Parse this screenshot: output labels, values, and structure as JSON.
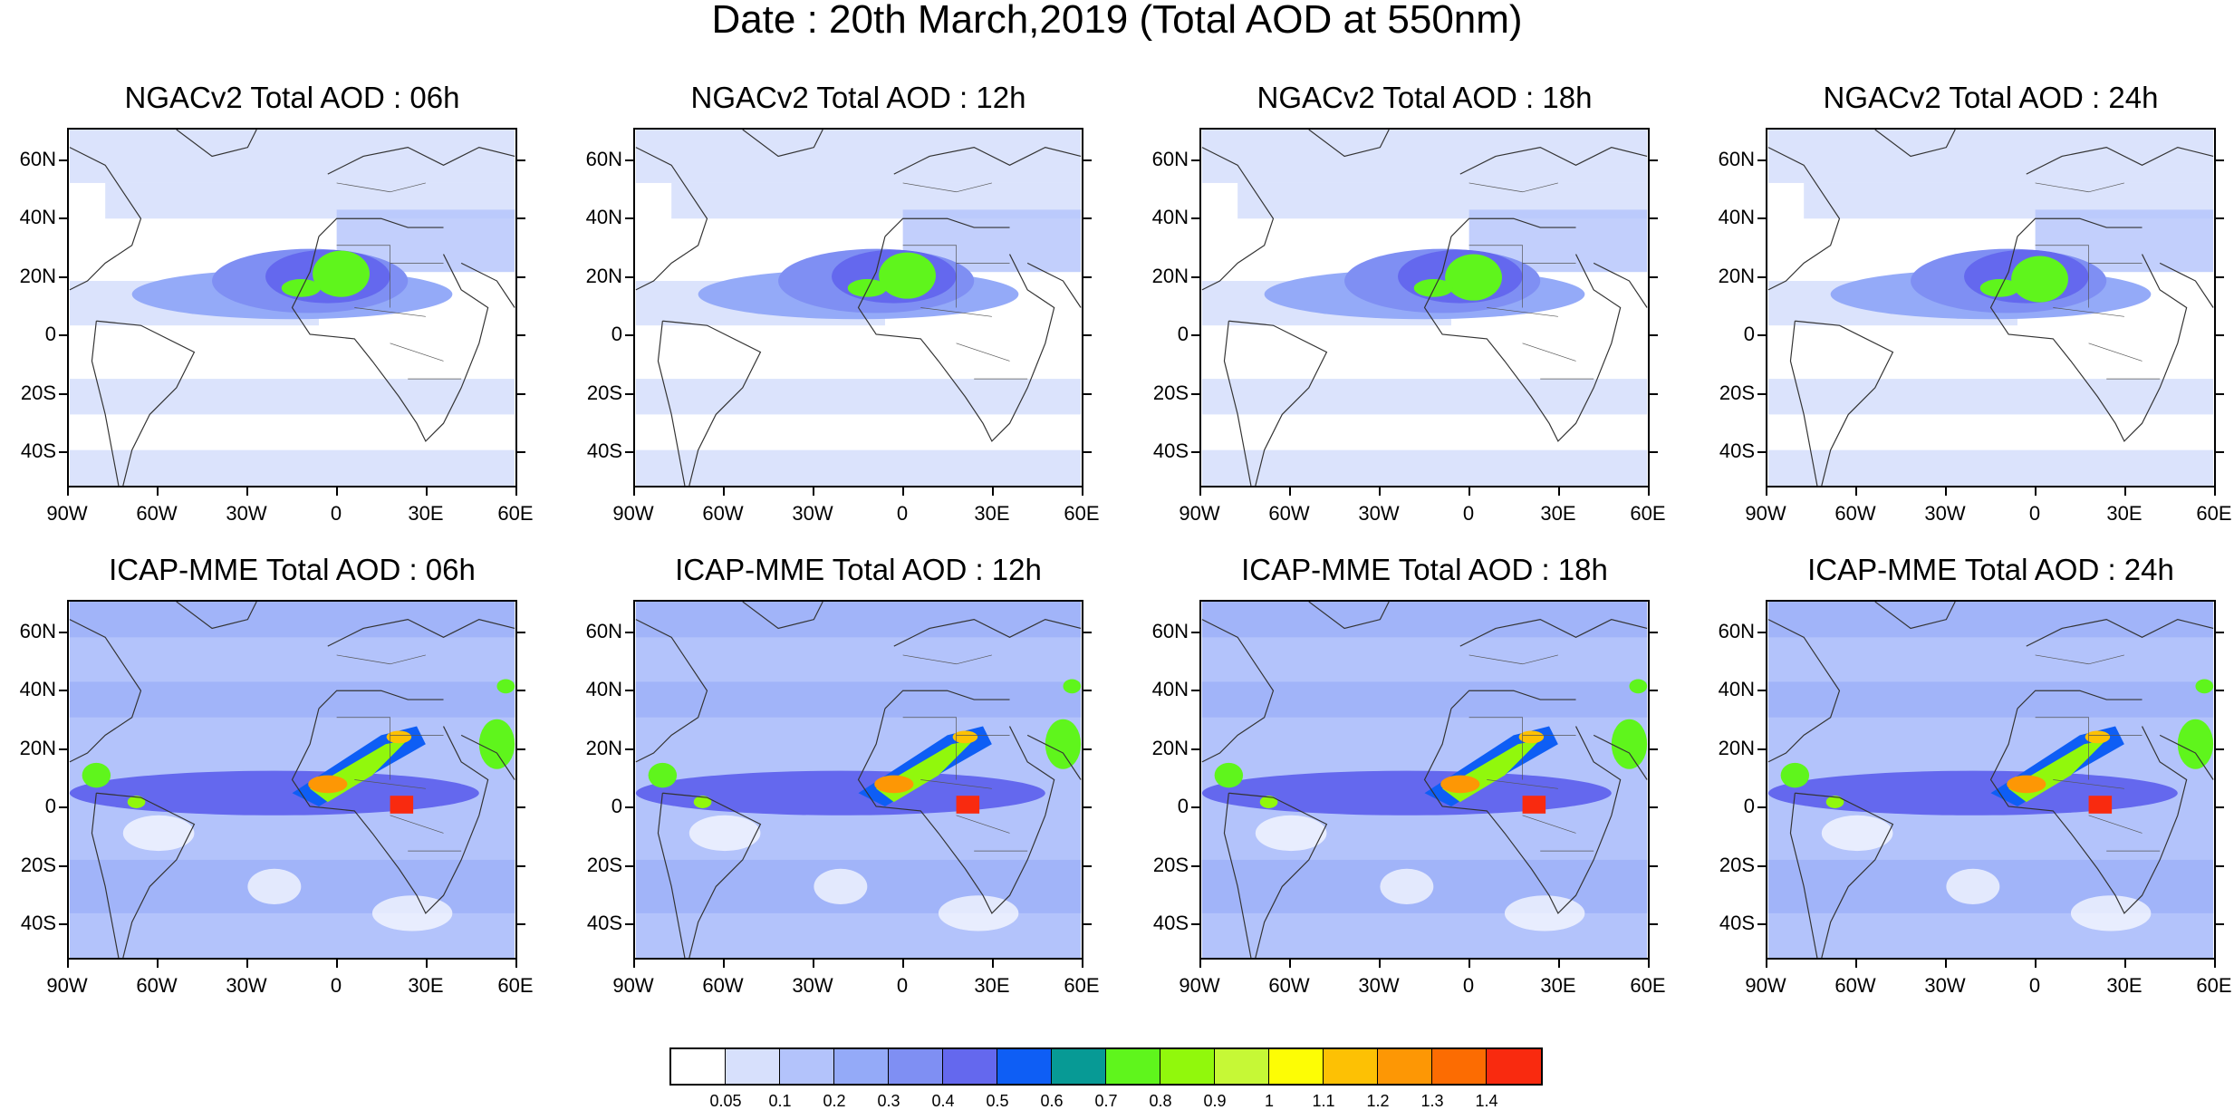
{
  "figure": {
    "title": "Date : 20th March,2019 (Total AOD at 550nm)"
  },
  "map": {
    "lat_ticks": [
      "60N",
      "40N",
      "20N",
      "0",
      "20S",
      "40S"
    ],
    "lon_ticks": [
      "90W",
      "60W",
      "30W",
      "0",
      "30E",
      "60E"
    ],
    "panels": [
      {
        "title": "NGACv2 Total AOD : 06h",
        "model": "NGACv2",
        "hour": "06h"
      },
      {
        "title": "NGACv2 Total AOD : 12h",
        "model": "NGACv2",
        "hour": "12h"
      },
      {
        "title": "NGACv2 Total AOD : 18h",
        "model": "NGACv2",
        "hour": "18h"
      },
      {
        "title": "NGACv2 Total AOD : 24h",
        "model": "NGACv2",
        "hour": "24h"
      },
      {
        "title": "ICAP-MME Total AOD : 06h",
        "model": "ICAP-MME",
        "hour": "06h"
      },
      {
        "title": "ICAP-MME Total AOD : 12h",
        "model": "ICAP-MME",
        "hour": "12h"
      },
      {
        "title": "ICAP-MME Total AOD : 18h",
        "model": "ICAP-MME",
        "hour": "18h"
      },
      {
        "title": "ICAP-MME Total AOD : 24h",
        "model": "ICAP-MME",
        "hour": "24h"
      }
    ]
  },
  "colorbar": {
    "labels": [
      "0.05",
      "0.1",
      "0.2",
      "0.3",
      "0.4",
      "0.5",
      "0.6",
      "0.7",
      "0.8",
      "0.9",
      "1",
      "1.1",
      "1.2",
      "1.3",
      "1.4"
    ],
    "colors": [
      "#ffffff",
      "#d7e0fc",
      "#b3c3fb",
      "#94aaf8",
      "#7f8ff3",
      "#6468ee",
      "#0e5ef5",
      "#079a95",
      "#5ff51c",
      "#91f80c",
      "#c6f836",
      "#fdfd05",
      "#fdc104",
      "#fd9705",
      "#fc6c02",
      "#f92a0f"
    ]
  }
}
